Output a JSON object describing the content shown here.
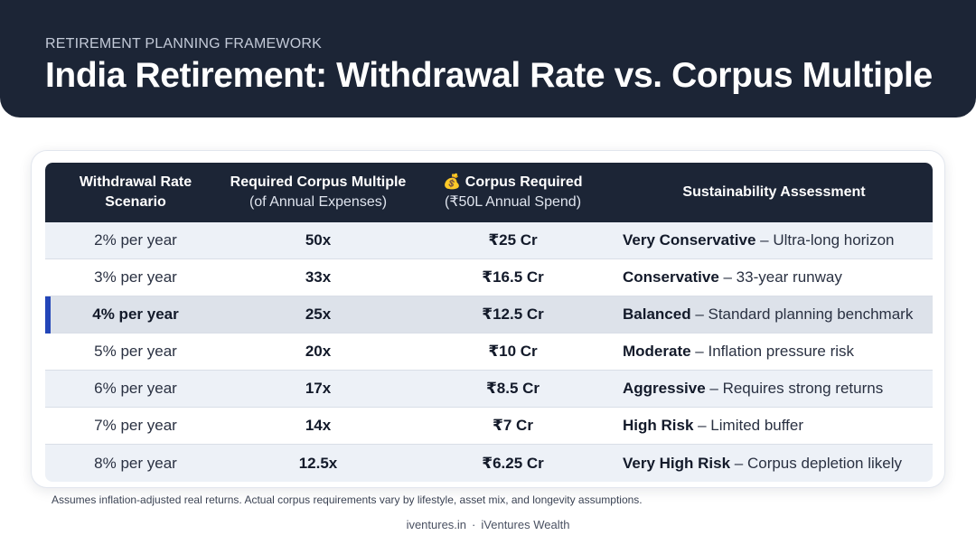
{
  "header": {
    "eyebrow": "RETIREMENT PLANNING FRAMEWORK",
    "title": "India Retirement: Withdrawal Rate vs. Corpus Multiple"
  },
  "table": {
    "columns": [
      {
        "line1": "Withdrawal Rate",
        "line2": "Scenario"
      },
      {
        "line1": "Required Corpus Multiple",
        "line2": "(of Annual Expenses)"
      },
      {
        "line1": "💰 Corpus Required",
        "line2": "(₹50L Annual Spend)"
      },
      {
        "line1": "Sustainability Assessment",
        "line2": ""
      }
    ],
    "rows": [
      {
        "rate": "2% per year",
        "multiple": "50x",
        "corpus": "₹25 Cr",
        "level": "Very Conservative",
        "note": " – Ultra-long horizon"
      },
      {
        "rate": "3% per year",
        "multiple": "33x",
        "corpus": "₹16.5 Cr",
        "level": "Conservative",
        "note": " – 33-year runway"
      },
      {
        "rate": "4% per year",
        "multiple": "25x",
        "corpus": "₹12.5 Cr",
        "level": "Balanced",
        "note": " – Standard planning benchmark"
      },
      {
        "rate": "5% per year",
        "multiple": "20x",
        "corpus": "₹10 Cr",
        "level": "Moderate",
        "note": " – Inflation pressure risk"
      },
      {
        "rate": "6% per year",
        "multiple": "17x",
        "corpus": "₹8.5 Cr",
        "level": "Aggressive",
        "note": " – Requires strong returns"
      },
      {
        "rate": "7% per year",
        "multiple": "14x",
        "corpus": "₹7 Cr",
        "level": "High Risk",
        "note": " – Limited buffer"
      },
      {
        "rate": "8% per year",
        "multiple": "12.5x",
        "corpus": "₹6.25 Cr",
        "level": "Very High Risk",
        "note": " – Corpus depletion likely"
      }
    ]
  },
  "footnote": "Assumes inflation-adjusted real returns. Actual corpus requirements vary by lifestyle, asset mix, and longevity assumptions.",
  "footer": {
    "site": "iventures.in",
    "separator": "·",
    "brand": "iVentures Wealth"
  }
}
